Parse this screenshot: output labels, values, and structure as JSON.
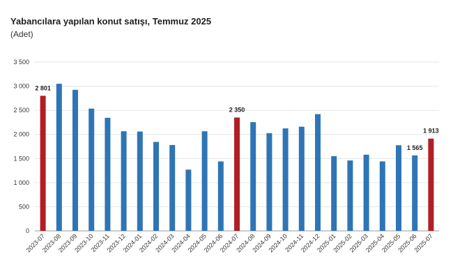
{
  "header": {
    "title": "Yabancılara yapılan konut satışı, Temmuz 2025",
    "subtitle": "(Adet)"
  },
  "colors": {
    "bar_default": "#2e75b6",
    "bar_highlight": "#b01f24",
    "gridline": "#e6e6e6",
    "axis": "#999999"
  },
  "chart_data": {
    "type": "bar",
    "title": "Yabancılara yapılan konut satışı, Temmuz 2025",
    "subtitle": "(Adet)",
    "ylim": [
      0,
      3500
    ],
    "yticks": [
      0,
      500,
      1000,
      1500,
      2000,
      2500,
      3000,
      3500
    ],
    "ytick_labels": [
      "0",
      "500",
      "1 000",
      "1 500",
      "2 000",
      "2 500",
      "3 000",
      "3 500"
    ],
    "grid": true,
    "categories": [
      "2023-07",
      "2023-08",
      "2023-09",
      "2023-10",
      "2023-11",
      "2023-12",
      "2024-01",
      "2024-02",
      "2024-03",
      "2024-04",
      "2024-05",
      "2024-06",
      "2024-07",
      "2024-08",
      "2024-09",
      "2024-10",
      "2024-11",
      "2024-12",
      "2025-01",
      "2025-02",
      "2025-03",
      "2025-04",
      "2025-05",
      "2025-06",
      "2025-07"
    ],
    "values": [
      2801,
      3050,
      2925,
      2535,
      2345,
      2065,
      2060,
      1845,
      1780,
      1270,
      2065,
      1440,
      2350,
      2255,
      2025,
      2125,
      2160,
      2420,
      1550,
      1460,
      1580,
      1440,
      1775,
      1565,
      1913
    ],
    "highlight": [
      true,
      false,
      false,
      false,
      false,
      false,
      false,
      false,
      false,
      false,
      false,
      false,
      true,
      false,
      false,
      false,
      false,
      false,
      false,
      false,
      false,
      false,
      false,
      false,
      true
    ],
    "data_labels": [
      {
        "index": 0,
        "text": "2 801"
      },
      {
        "index": 12,
        "text": "2 350"
      },
      {
        "index": 23,
        "text": "1 565"
      },
      {
        "index": 24,
        "text": "1 913"
      }
    ]
  }
}
